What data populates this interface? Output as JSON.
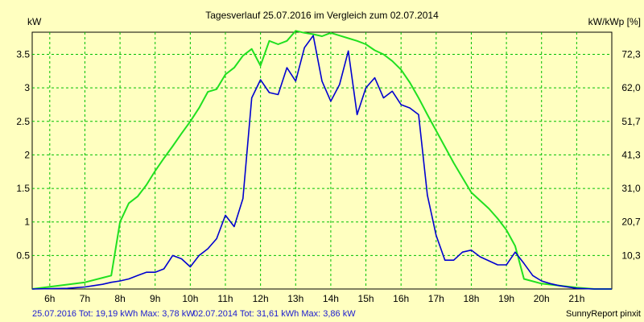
{
  "chart_data": {
    "type": "line",
    "title": "Tagesverlauf 25.07.2016 im Vergleich zum 02.07.2014",
    "ylabel_left": "kW",
    "ylabel_right": "kW/kWp [%]",
    "x_tick_labels": [
      "6h",
      "7h",
      "8h",
      "9h",
      "10h",
      "11h",
      "12h",
      "13h",
      "14h",
      "15h",
      "16h",
      "17h",
      "18h",
      "19h",
      "20h",
      "21h"
    ],
    "x_tick_hours": [
      6,
      7,
      8,
      9,
      10,
      11,
      12,
      13,
      14,
      15,
      16,
      17,
      18,
      19,
      20,
      21
    ],
    "xlim": [
      5.5,
      22.0
    ],
    "ylim": [
      0,
      3.83
    ],
    "y_tick_values": [
      0.5,
      1,
      1.5,
      2,
      2.5,
      3,
      3.5
    ],
    "y_tick_labels": [
      "0.5",
      "1",
      "1.5",
      "2",
      "2.5",
      "3",
      "3.5"
    ],
    "y2_tick_labels": [
      "10,3",
      "20,7",
      "31,0",
      "41,3",
      "51,7",
      "62,0",
      "72,3"
    ],
    "grid": true,
    "series": [
      {
        "name": "25.07.2016",
        "color": "#0000d0",
        "x": [
          5.5,
          6.5,
          7.0,
          7.25,
          7.5,
          7.75,
          8.0,
          8.25,
          8.5,
          8.75,
          9.0,
          9.25,
          9.5,
          9.75,
          10.0,
          10.25,
          10.5,
          10.75,
          11.0,
          11.25,
          11.5,
          11.75,
          12.0,
          12.25,
          12.5,
          12.75,
          13.0,
          13.25,
          13.5,
          13.75,
          14.0,
          14.25,
          14.5,
          14.75,
          15.0,
          15.25,
          15.5,
          15.75,
          16.0,
          16.25,
          16.5,
          16.75,
          17.0,
          17.25,
          17.5,
          17.75,
          18.0,
          18.25,
          18.5,
          18.75,
          19.0,
          19.25,
          19.5,
          19.75,
          20.0,
          20.25,
          20.5,
          21.0,
          21.5,
          22.0
        ],
        "y": [
          0,
          0.01,
          0.03,
          0.05,
          0.07,
          0.1,
          0.12,
          0.15,
          0.2,
          0.25,
          0.25,
          0.3,
          0.5,
          0.45,
          0.33,
          0.5,
          0.6,
          0.75,
          1.1,
          0.93,
          1.35,
          2.85,
          3.12,
          2.93,
          2.9,
          3.3,
          3.1,
          3.6,
          3.78,
          3.1,
          2.8,
          3.05,
          3.55,
          2.6,
          3.0,
          3.15,
          2.85,
          2.95,
          2.75,
          2.7,
          2.6,
          1.4,
          0.8,
          0.43,
          0.43,
          0.55,
          0.58,
          0.48,
          0.42,
          0.36,
          0.36,
          0.55,
          0.38,
          0.2,
          0.12,
          0.08,
          0.05,
          0.01,
          0,
          0
        ]
      },
      {
        "name": "02.07.2014",
        "color": "#20e020",
        "x": [
          5.5,
          7.0,
          7.75,
          8.0,
          8.25,
          8.5,
          8.75,
          9.0,
          9.25,
          9.5,
          9.75,
          10.0,
          10.25,
          10.5,
          10.75,
          11.0,
          11.25,
          11.5,
          11.75,
          12.0,
          12.25,
          12.5,
          12.75,
          13.0,
          13.25,
          13.5,
          13.75,
          14.0,
          14.25,
          14.5,
          14.75,
          15.0,
          15.25,
          15.5,
          15.75,
          16.0,
          16.25,
          16.5,
          16.75,
          17.0,
          17.25,
          17.5,
          17.75,
          18.0,
          18.25,
          18.5,
          18.75,
          19.0,
          19.25,
          19.5,
          20.0,
          20.5,
          21.0,
          21.5,
          22.0
        ],
        "y": [
          0,
          0.1,
          0.2,
          1.0,
          1.28,
          1.38,
          1.55,
          1.76,
          1.95,
          2.13,
          2.32,
          2.5,
          2.7,
          2.94,
          2.98,
          3.2,
          3.3,
          3.48,
          3.58,
          3.33,
          3.7,
          3.65,
          3.7,
          3.85,
          3.82,
          3.8,
          3.77,
          3.82,
          3.78,
          3.74,
          3.7,
          3.65,
          3.56,
          3.5,
          3.4,
          3.27,
          3.08,
          2.85,
          2.6,
          2.36,
          2.12,
          1.88,
          1.66,
          1.44,
          1.32,
          1.2,
          1.05,
          0.88,
          0.64,
          0.15,
          0.08,
          0.05,
          0.02,
          0,
          0
        ]
      }
    ],
    "legend": {
      "series1_text": "25.07.2016 Tot: 19,19 kWh Max: 3,78 kW",
      "series2_text": "02.07.2014 Tot: 31,61 kWh Max: 3,86 kW"
    },
    "footer_right": "SunnyReport pinxit"
  }
}
